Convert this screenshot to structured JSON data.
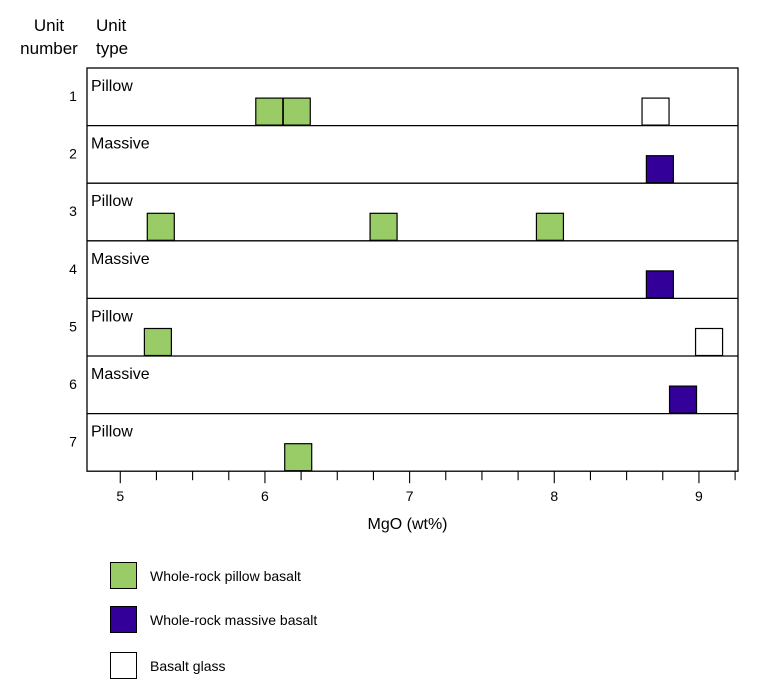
{
  "headers": {
    "unit_number": [
      "Unit",
      "number"
    ],
    "unit_type": [
      "Unit",
      "type"
    ]
  },
  "colors": {
    "pillow": "#99cc66",
    "massive": "#330099",
    "glass": "#ffffff"
  },
  "chart_data": {
    "type": "scatter",
    "xlabel": "MgO (wt%)",
    "xlim": [
      4.77,
      9.27
    ],
    "x_ticks": [
      5,
      6,
      7,
      8,
      9
    ],
    "x_minor_step": 0.25,
    "units": [
      {
        "number": "1",
        "type": "Pillow"
      },
      {
        "number": "2",
        "type": "Massive"
      },
      {
        "number": "3",
        "type": "Pillow"
      },
      {
        "number": "4",
        "type": "Massive"
      },
      {
        "number": "5",
        "type": "Pillow"
      },
      {
        "number": "6",
        "type": "Massive"
      },
      {
        "number": "7",
        "type": "Pillow"
      }
    ],
    "series": [
      {
        "name": "Whole-rock pillow basalt",
        "key": "pillow",
        "points": [
          {
            "unit": 1,
            "x": 6.03
          },
          {
            "unit": 1,
            "x": 6.22
          },
          {
            "unit": 3,
            "x": 5.28
          },
          {
            "unit": 3,
            "x": 6.82
          },
          {
            "unit": 3,
            "x": 7.97
          },
          {
            "unit": 5,
            "x": 5.26
          },
          {
            "unit": 7,
            "x": 6.23
          }
        ]
      },
      {
        "name": "Whole-rock massive basalt",
        "key": "massive",
        "points": [
          {
            "unit": 2,
            "x": 8.73
          },
          {
            "unit": 4,
            "x": 8.73
          },
          {
            "unit": 6,
            "x": 8.89
          }
        ]
      },
      {
        "name": "Basalt glass",
        "key": "glass",
        "points": [
          {
            "unit": 1,
            "x": 8.7
          },
          {
            "unit": 5,
            "x": 9.07
          }
        ]
      }
    ]
  }
}
